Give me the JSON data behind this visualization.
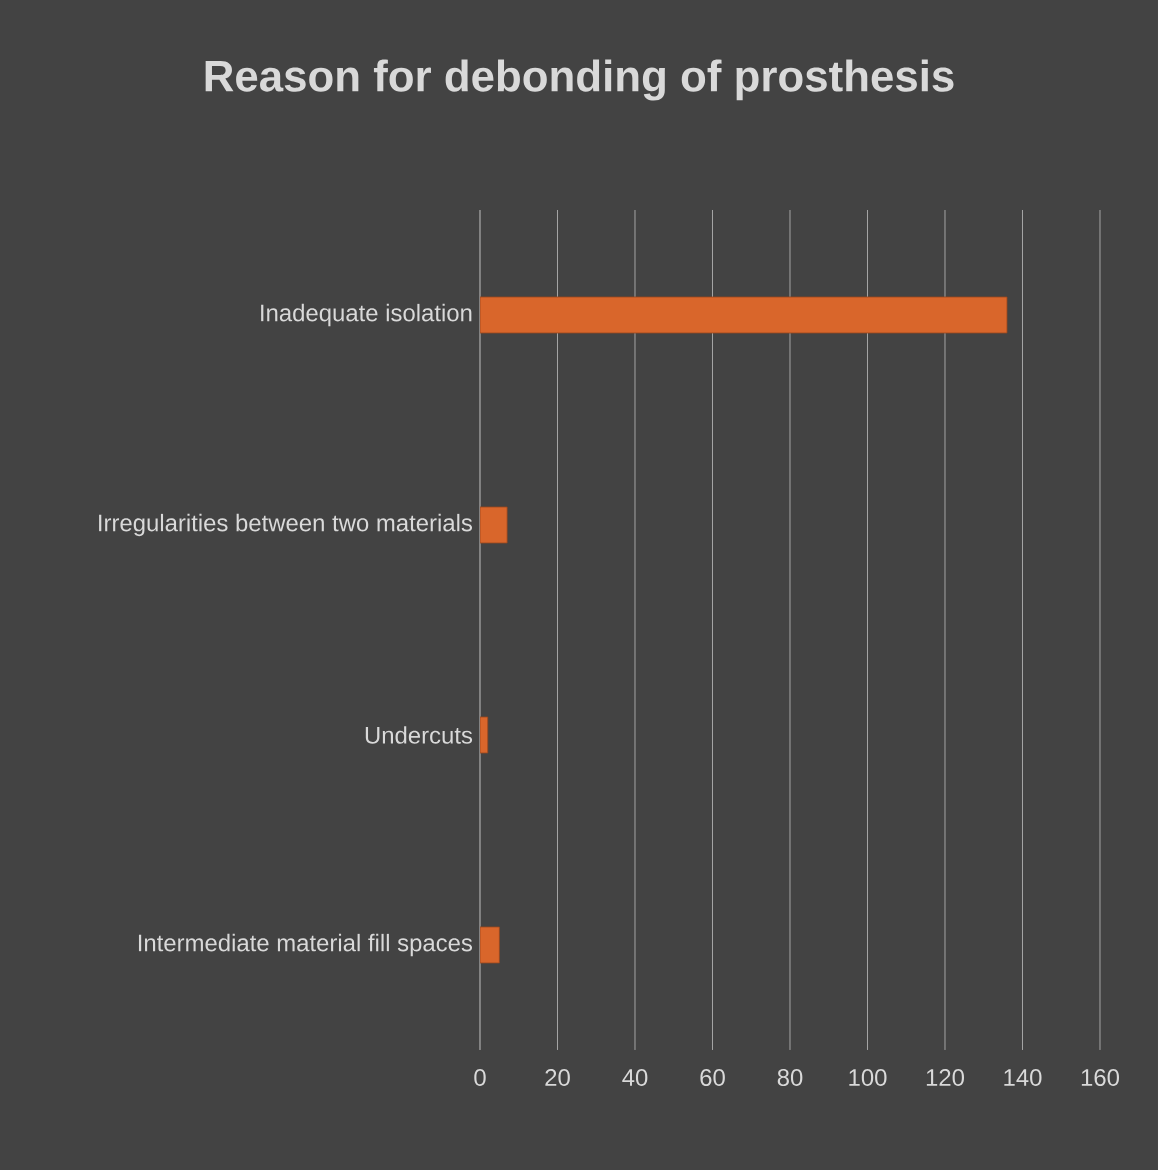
{
  "chart_data": {
    "type": "bar",
    "orientation": "horizontal",
    "title": "Reason for debonding of prosthesis",
    "categories": [
      "Inadequate isolation",
      "Irregularities between two materials",
      "Undercuts",
      "Intermediate material fill spaces"
    ],
    "values": [
      136,
      7,
      2,
      5
    ],
    "color": "#d9662b",
    "xlim": [
      0,
      160
    ],
    "xticks": [
      0,
      20,
      40,
      60,
      80,
      100,
      120,
      140,
      160
    ],
    "grid": "x"
  }
}
